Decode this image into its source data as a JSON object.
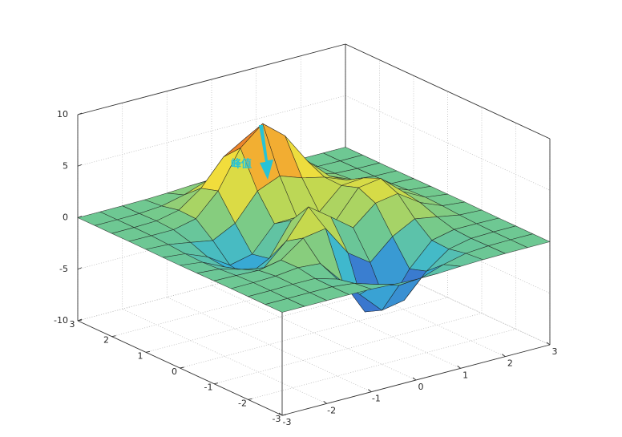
{
  "chart_data": {
    "type": "surface",
    "x": [
      -3,
      -2.5,
      -2,
      -1.5,
      -1,
      -0.5,
      0,
      0.5,
      1,
      1.5,
      2,
      2.5,
      3
    ],
    "y": [
      -3,
      -2.5,
      -2,
      -1.5,
      -1,
      -0.5,
      0,
      0.5,
      1,
      1.5,
      2,
      2.5,
      3
    ],
    "z": [
      [
        0,
        0,
        0,
        0,
        -0.03,
        -0.14,
        -0.24,
        -0.22,
        -0.11,
        -0.03,
        0,
        0,
        0
      ],
      [
        0,
        0,
        0.01,
        0,
        -0.23,
        -0.91,
        -1.57,
        -1.41,
        -0.69,
        -0.18,
        -0.03,
        0,
        0
      ],
      [
        0,
        0.01,
        0.05,
        0.04,
        -0.59,
        -2.64,
        -4.76,
        -4.35,
        -2.1,
        -0.53,
        -0.06,
        0,
        0
      ],
      [
        0,
        0.01,
        0.08,
        0.33,
        0.15,
        -2.19,
        -5.68,
        -5.76,
        -2.64,
        -0.44,
        0.04,
        0.03,
        0
      ],
      [
        -0.01,
        -0.06,
        -0.13,
        0.3,
        1.86,
        2.22,
        -0.72,
        -2.22,
        -0.27,
        0.88,
        0.5,
        0.11,
        0.01
      ],
      [
        -0.03,
        -0.2,
        -0.8,
        -1.21,
        0.8,
        3.55,
        2,
        0.39,
        2.2,
        2.56,
        1.12,
        0.24,
        0.03
      ],
      [
        -0.04,
        -0.3,
        -1.33,
        -2.77,
        -1.65,
        1.48,
        0.98,
        0.37,
        2.94,
        3.27,
        1.41,
        0.3,
        0.03
      ],
      [
        -0.03,
        -0.25,
        -1.12,
        -2.49,
        -2,
        0.39,
        0.46,
        0.38,
        2.38,
        2.56,
        1.09,
        0.23,
        0.03
      ],
      [
        -0.01,
        -0.11,
        -0.48,
        -0.86,
        0.23,
        2.79,
        3.69,
        2.93,
        2.43,
        1.58,
        0.58,
        0.11,
        0.01
      ],
      [
        0,
        -0.02,
        -0.01,
        0.48,
        2.61,
        6.2,
        8,
        6.25,
        3.25,
        1.19,
        0.29,
        0.05,
        0
      ],
      [
        0,
        0.01,
        0.08,
        0.55,
        2.1,
        4.56,
        5.86,
        4.57,
        2.21,
        0.68,
        0.13,
        0.02,
        0
      ],
      [
        0,
        0,
        0.03,
        0.19,
        0.69,
        1.47,
        1.88,
        1.47,
        0.7,
        0.2,
        0.04,
        0,
        0
      ],
      [
        0,
        0,
        0.01,
        0.03,
        0.11,
        0.23,
        0.3,
        0.23,
        0.11,
        0.03,
        0.01,
        0,
        0
      ]
    ],
    "xlim": [
      -3,
      3
    ],
    "ylim": [
      -3,
      3
    ],
    "zlim": [
      -10,
      10
    ],
    "xticks": [
      -3,
      -2,
      -1,
      0,
      1,
      2,
      3
    ],
    "yticks": [
      -3,
      -2,
      -1,
      0,
      1,
      2,
      3
    ],
    "zticks": [
      -10,
      -5,
      0,
      5,
      10
    ],
    "grid": true,
    "colormap": [
      "#3b3f9f",
      "#3a78cf",
      "#38b6d6",
      "#72c98e",
      "#c6d94e",
      "#f6de3a",
      "#ef8b2c",
      "#c8282a"
    ],
    "edgecolor": "#1a1a1a",
    "annotation": "峰值"
  }
}
